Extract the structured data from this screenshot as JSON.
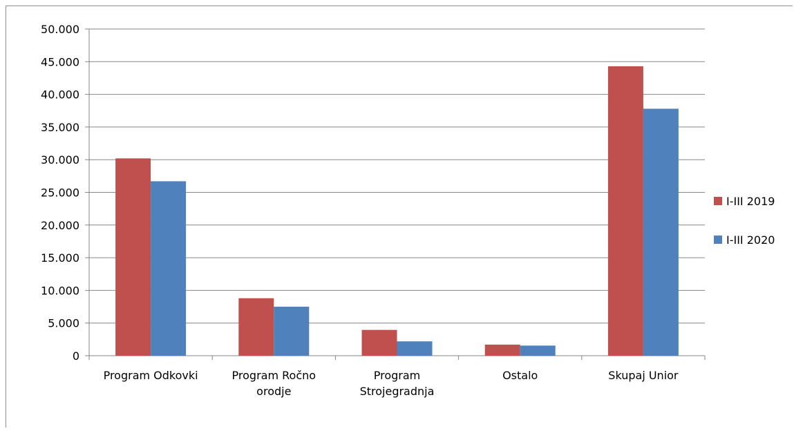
{
  "chart_data": {
    "type": "bar",
    "title": "",
    "xlabel": "",
    "ylabel": "",
    "ylim": [
      0,
      50000
    ],
    "yticks": [
      0,
      5000,
      10000,
      15000,
      20000,
      25000,
      30000,
      35000,
      40000,
      45000,
      50000
    ],
    "ytick_labels": [
      "0",
      "5.000",
      "10.000",
      "15.000",
      "20.000",
      "25.000",
      "30.000",
      "35.000",
      "40.000",
      "45.000",
      "50.000"
    ],
    "categories": [
      [
        "Program Odkovki"
      ],
      [
        "Program Ročno",
        "orodje"
      ],
      [
        "Program",
        "Strojegradnja"
      ],
      [
        "Ostalo"
      ],
      [
        "Skupaj Unior"
      ]
    ],
    "series": [
      {
        "name": "I-III 2019",
        "color": "#c0504d",
        "values": [
          30200,
          8800,
          3950,
          1700,
          44300
        ]
      },
      {
        "name": "I-III 2020",
        "color": "#4f81bd",
        "values": [
          26700,
          7500,
          2200,
          1550,
          37800
        ]
      }
    ],
    "grid": true,
    "legend": "right"
  }
}
